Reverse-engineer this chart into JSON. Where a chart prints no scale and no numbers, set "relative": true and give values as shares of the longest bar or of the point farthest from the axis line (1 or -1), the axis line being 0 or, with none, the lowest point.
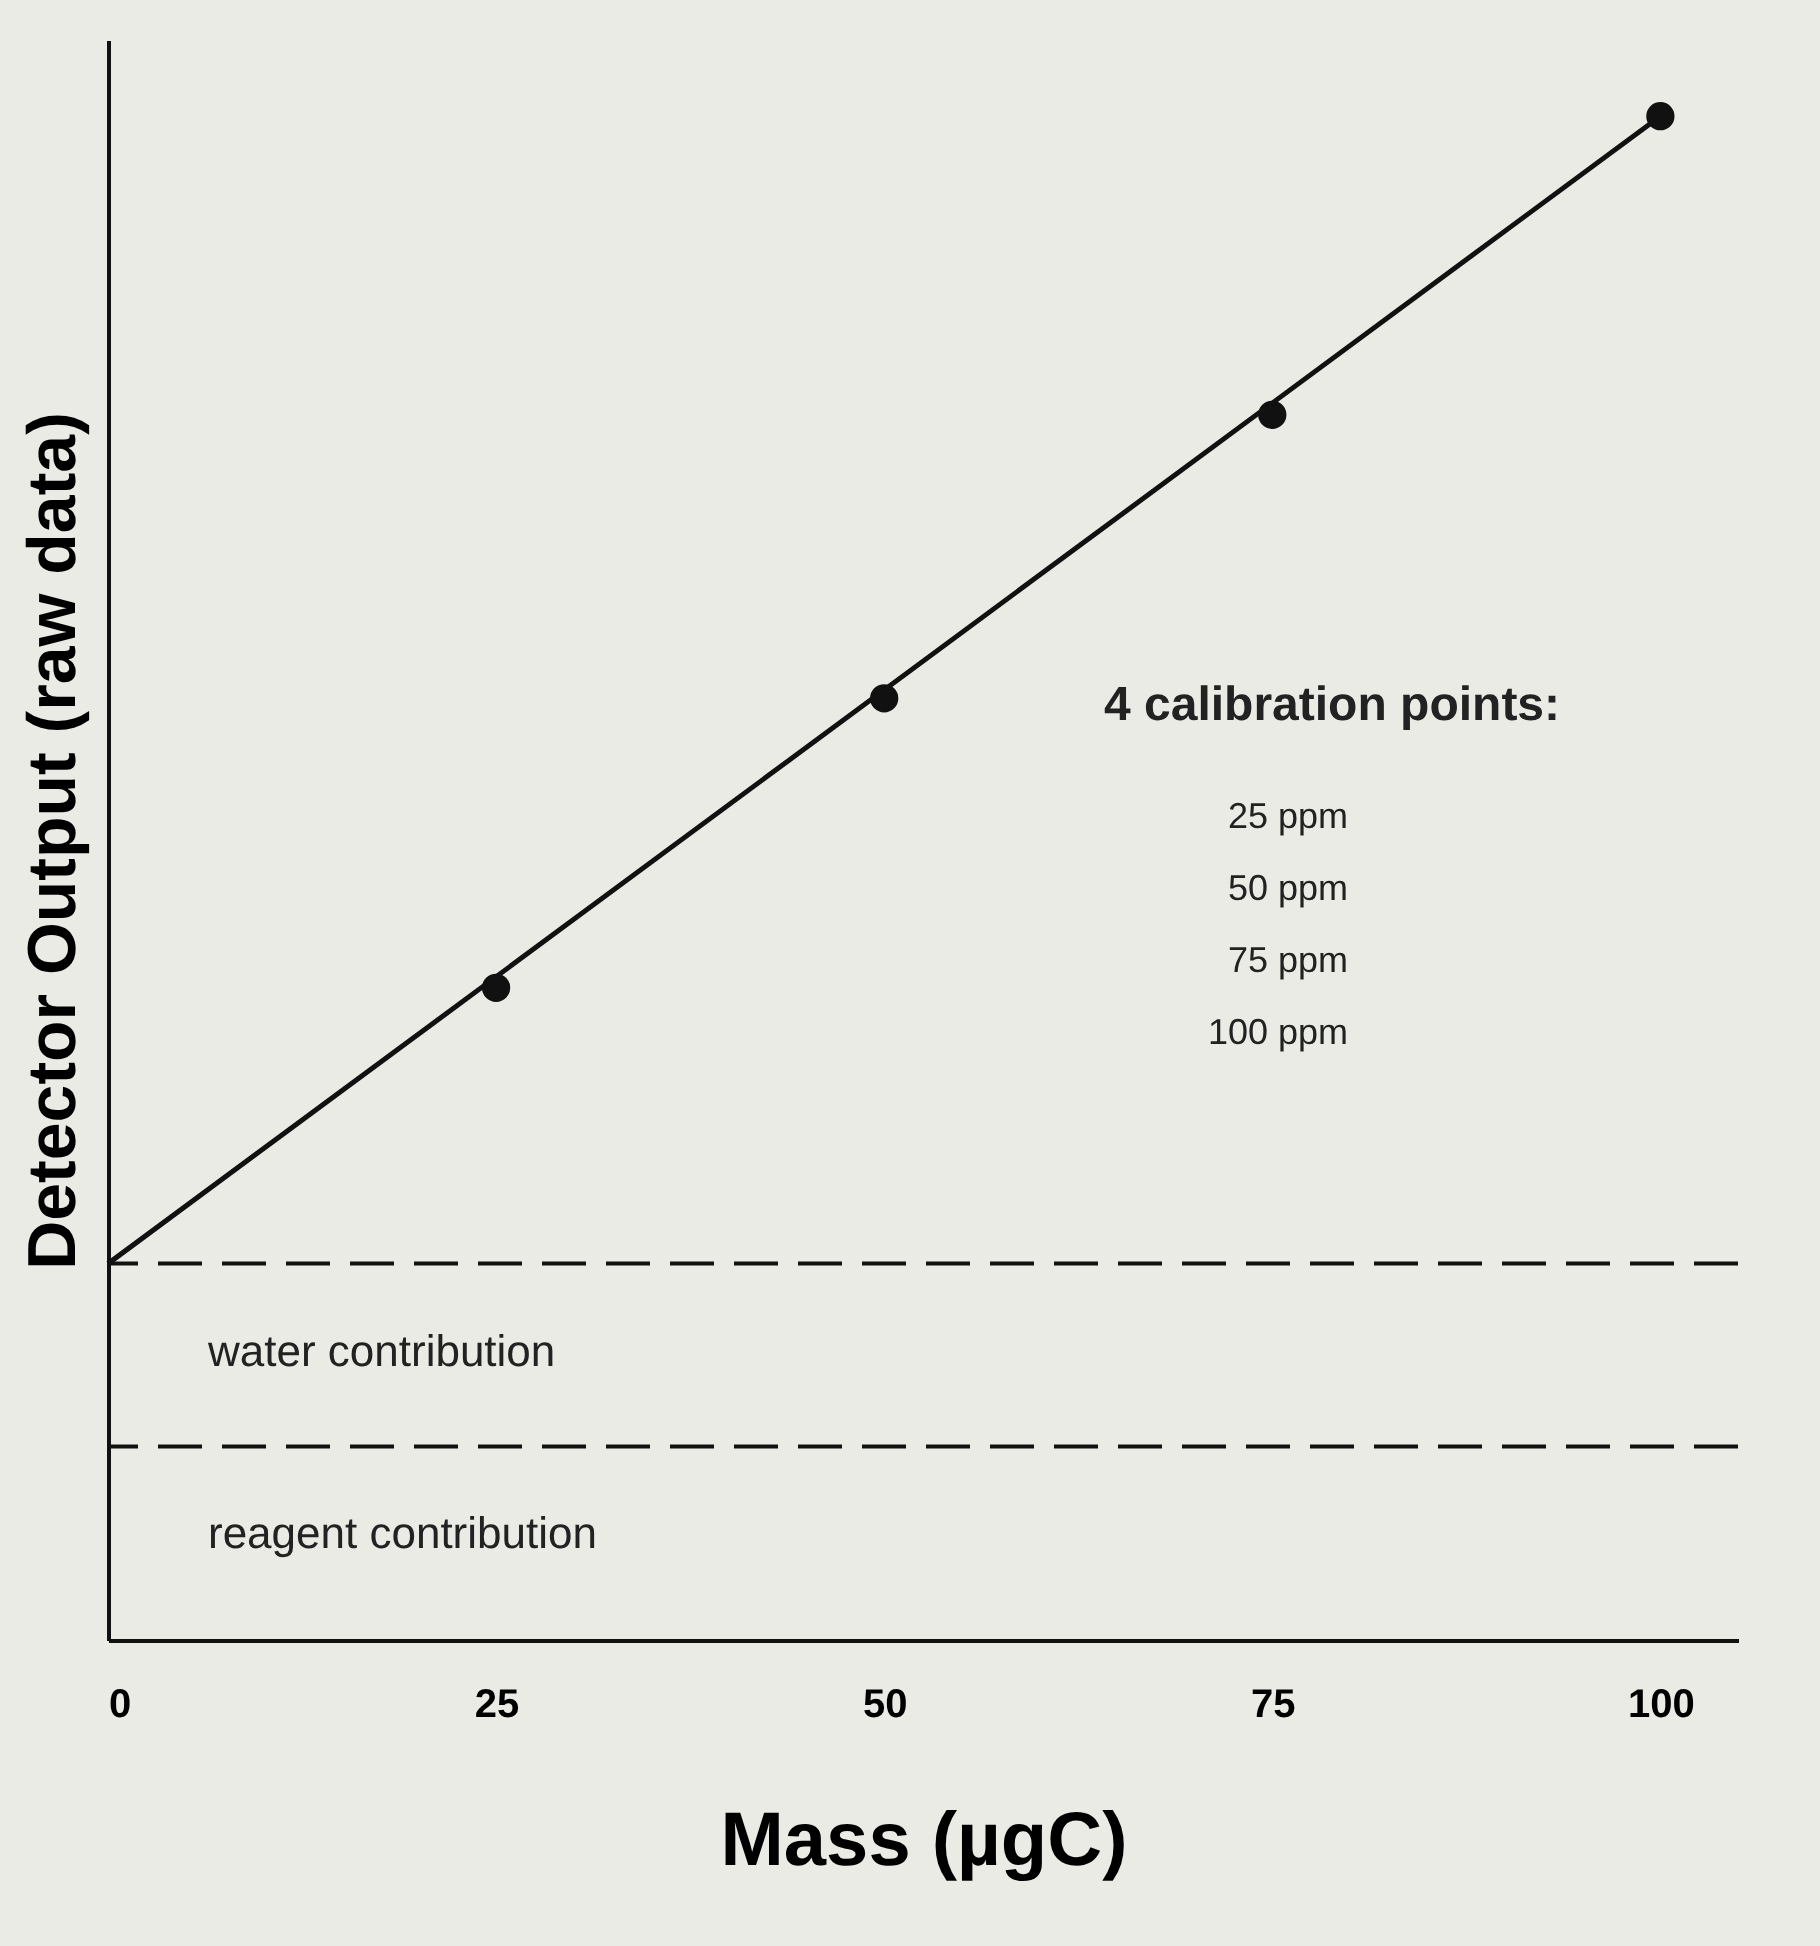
{
  "chart_data": {
    "type": "scatter",
    "relative": true,
    "xlabel": "Mass (µgC)",
    "ylabel": "Detector Output (raw data)",
    "xlim": [
      0,
      105
    ],
    "xticks": [
      0,
      25,
      50,
      75,
      100
    ],
    "grid": false,
    "series": [
      {
        "color": "#111111",
        "marker": "circle",
        "x": [
          25,
          50,
          75,
          100
        ],
        "values": [
          0.428,
          0.618,
          0.804,
          1
        ]
      },
      {
        "type": "line",
        "color": "#111111",
        "x": [
          0,
          100
        ],
        "values": [
          0.247,
          1
        ]
      }
    ],
    "ref_lines": [
      {
        "axis": "y",
        "value": 0.247,
        "label": "water contribution",
        "line_style": "dashed",
        "color": "#111111"
      },
      {
        "axis": "y",
        "value": 0.127,
        "label": "reagent contribution",
        "line_style": "dashed",
        "color": "#111111"
      }
    ],
    "annotations": [
      "4 calibration points:",
      "25 ppm",
      "50 ppm",
      "75 ppm",
      "100 ppm"
    ]
  }
}
